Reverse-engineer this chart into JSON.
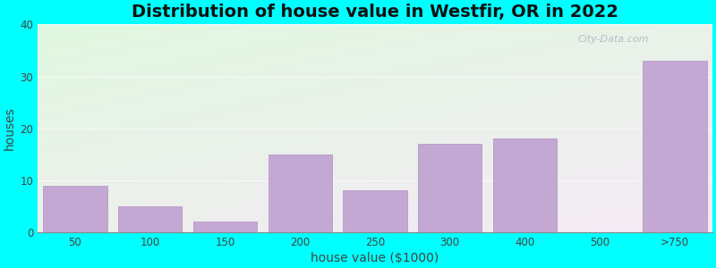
{
  "title": "Distribution of house value in Westfir, OR in 2022",
  "xlabel": "house value ($1000)",
  "ylabel": "houses",
  "categories": [
    "50",
    "100",
    "150",
    "200",
    "250",
    "300",
    "400",
    "500",
    ">750"
  ],
  "values": [
    9,
    5,
    2,
    15,
    8,
    17,
    18,
    0,
    33
  ],
  "bar_color": "#C4A8D4",
  "bar_edge_color": "#B090C0",
  "bg_color_topleft": "#B8DDB0",
  "bg_color_bottomright": "#E8F4E8",
  "outer_bg": "#00FFFF",
  "ylim": [
    0,
    40
  ],
  "yticks": [
    0,
    10,
    20,
    30,
    40
  ],
  "title_fontsize": 14,
  "axis_label_fontsize": 10,
  "tick_fontsize": 8.5,
  "watermark": "City-Data.com"
}
